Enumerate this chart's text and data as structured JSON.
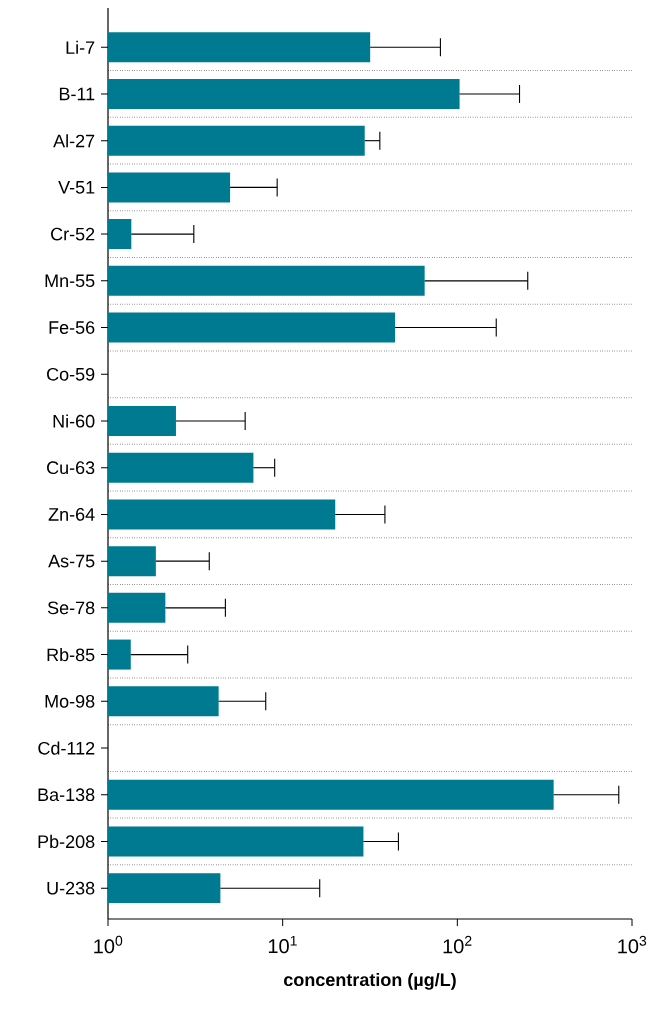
{
  "chart_data": {
    "type": "bar",
    "orientation": "horizontal",
    "xlabel": "**concentration (µg/L)**",
    "log": "x",
    "categories": [
      "Li-7",
      "B-11",
      "Al-27",
      "V-51",
      "Cr-52",
      "Mn-55",
      "Fe-56",
      "Co-59",
      "Ni-60",
      "Cu-63",
      "Zn-64",
      "As-75",
      "Se-78",
      "Rb-85",
      "Mo-98",
      "Cd-112",
      "Ba-138",
      "Pb-208",
      "U-238"
    ],
    "values": [
      31.7,
      103,
      29.5,
      5.0,
      1.36,
      65,
      44,
      null,
      2.45,
      6.8,
      20,
      1.88,
      2.13,
      1.35,
      4.3,
      null,
      356,
      29,
      4.4
    ],
    "errors": [
      [
        31.7,
        80
      ],
      [
        103,
        227
      ],
      [
        29.5,
        36
      ],
      [
        5.0,
        9.3
      ],
      [
        1.36,
        3.1
      ],
      [
        65,
        253
      ],
      [
        44,
        167
      ],
      null,
      [
        2.45,
        6.1
      ],
      [
        6.8,
        9.0
      ],
      [
        20,
        38.5
      ],
      [
        1.88,
        3.8
      ],
      [
        2.13,
        4.7
      ],
      [
        1.35,
        2.86
      ],
      [
        4.3,
        8.0
      ],
      null,
      [
        356,
        840
      ],
      [
        29,
        46
      ],
      [
        4.4,
        16.3
      ]
    ],
    "color": "#007a91",
    "xlim": [
      1,
      1000
    ],
    "xticks": [
      {
        "value": 1,
        "label": "10$^{0}$"
      },
      {
        "value": 10,
        "label": "10$^{1}$"
      },
      {
        "value": 100,
        "label": "10$^{2}$"
      },
      {
        "value": 1000,
        "label": "10$^{3}$"
      }
    ],
    "grid": "y"
  }
}
